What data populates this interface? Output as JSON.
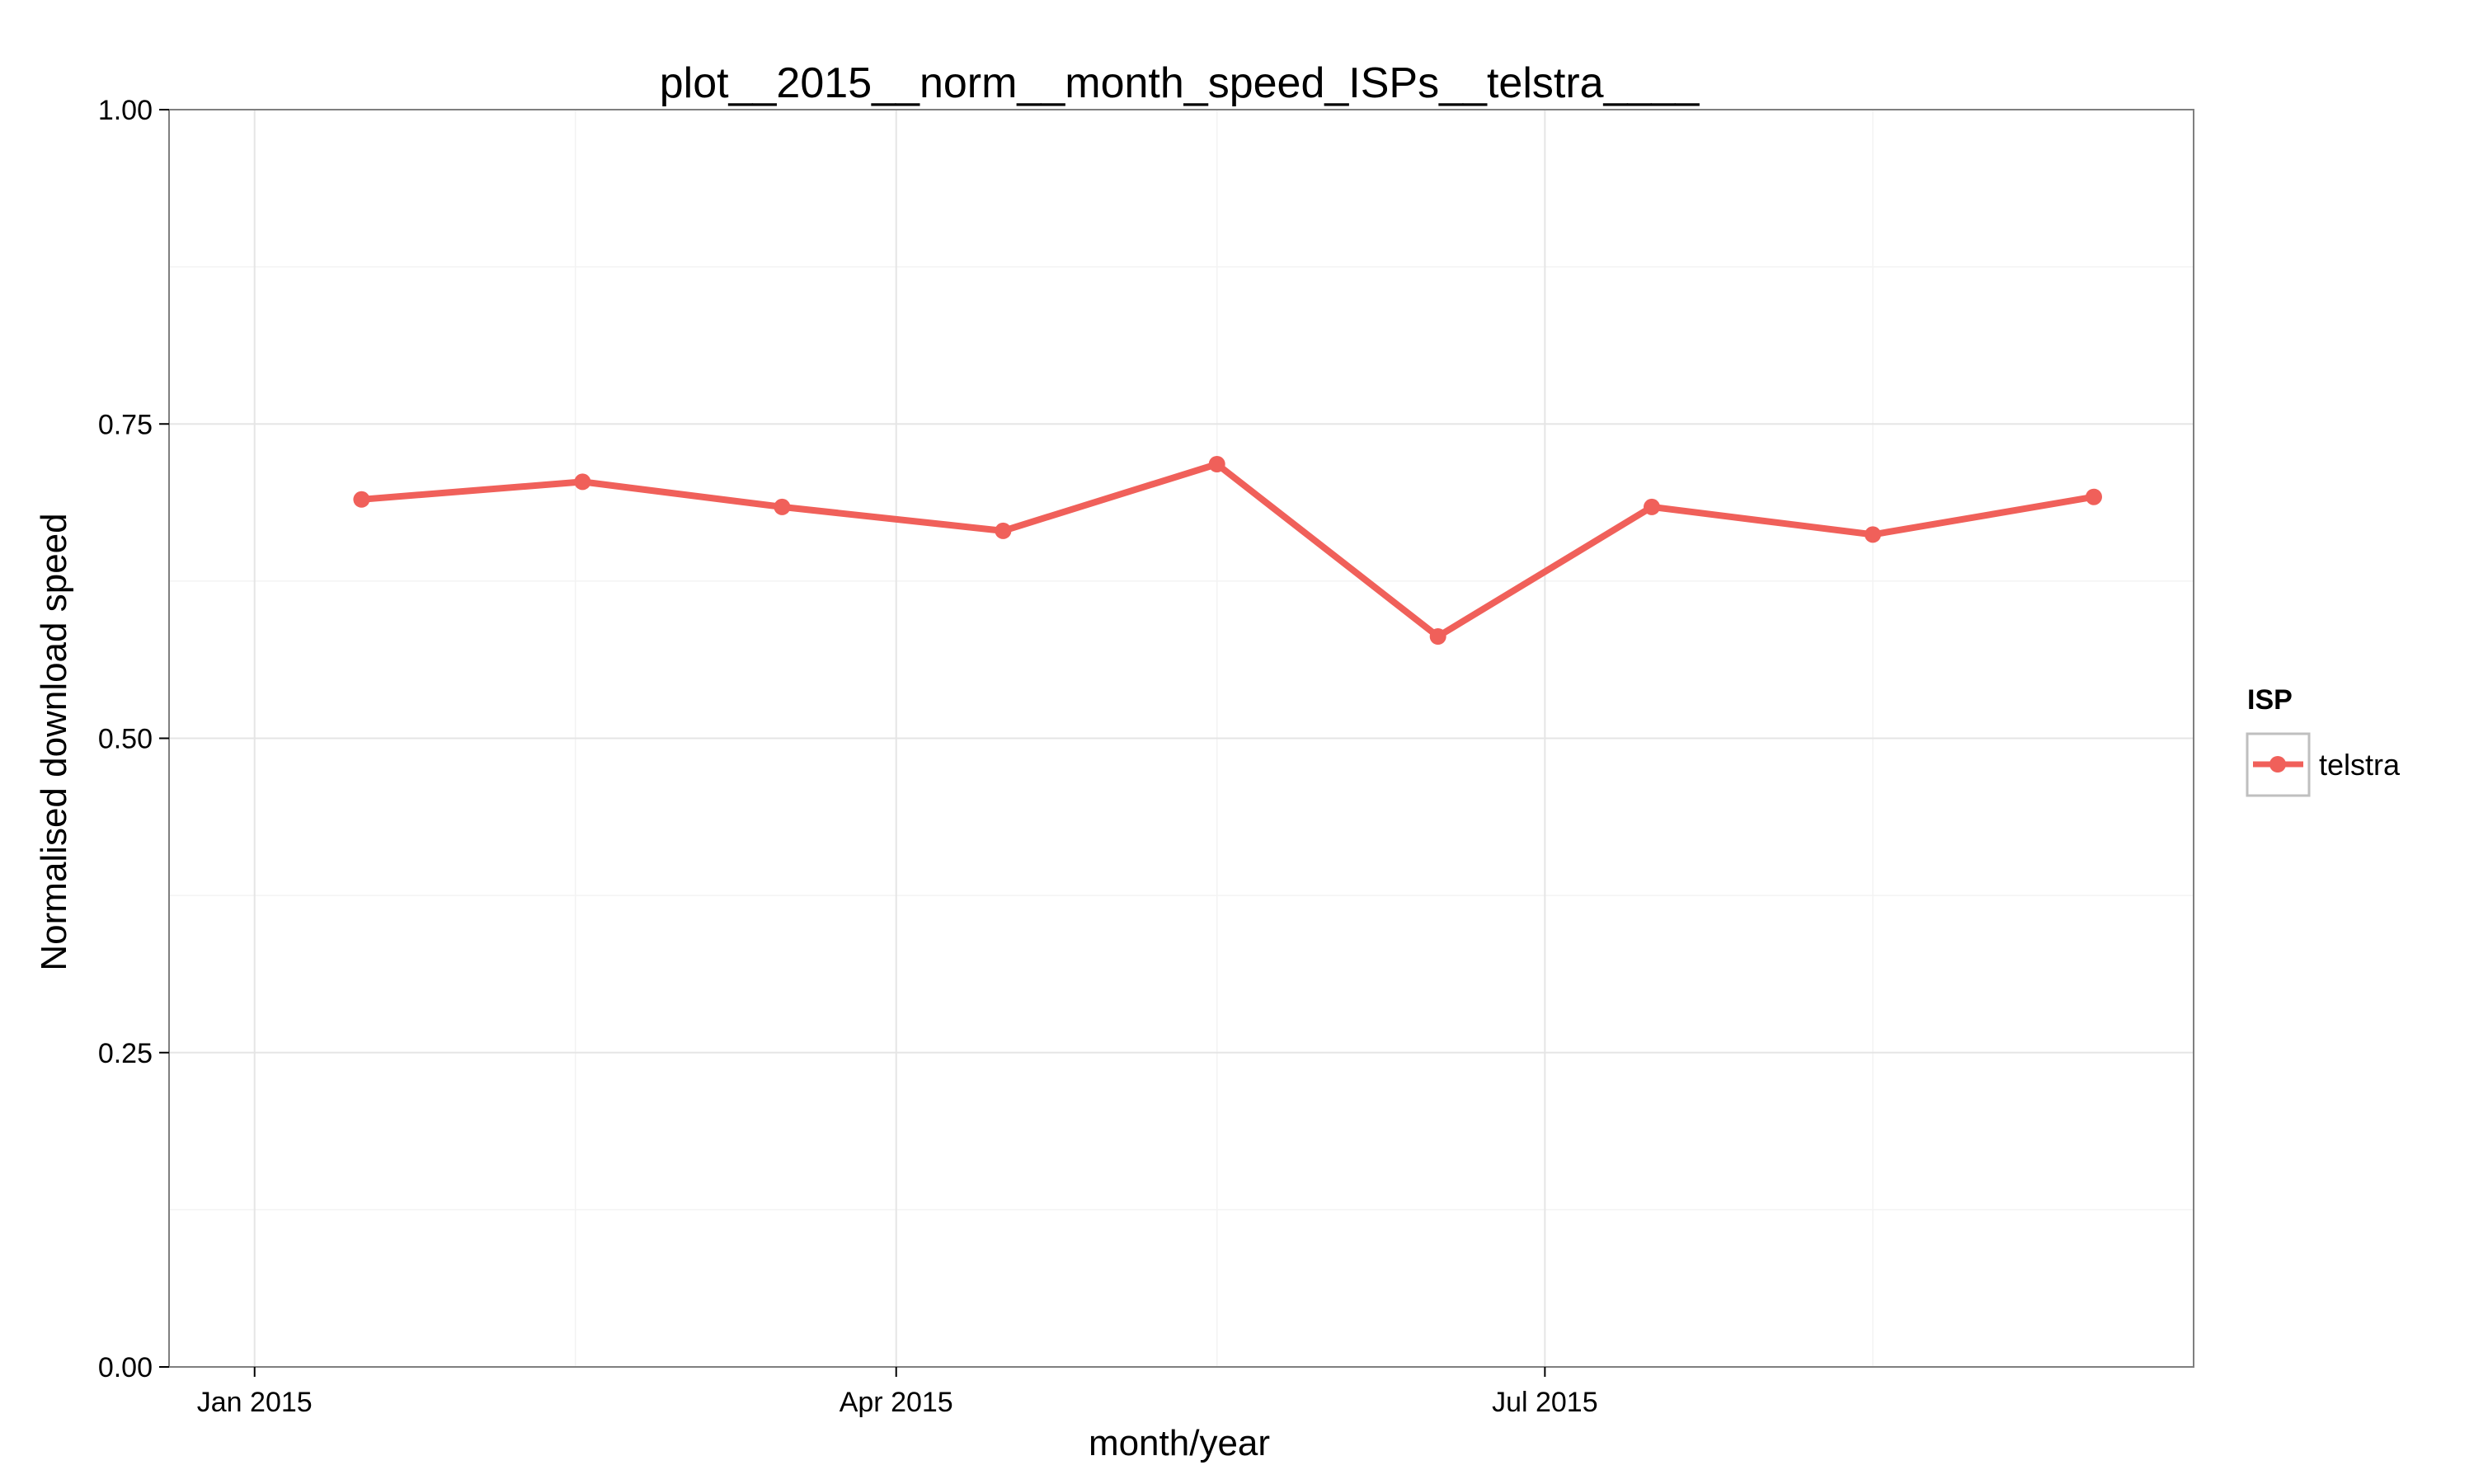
{
  "chart_data": {
    "type": "line",
    "title": "plot__2015__norm__month_speed_ISPs__telstra____",
    "xlabel": "month/year",
    "ylabel": "Normalised download speed",
    "x": [
      "2015-01",
      "2015-02",
      "2015-03",
      "2015-04",
      "2015-05",
      "2015-06",
      "2015-07",
      "2015-08",
      "2015-09"
    ],
    "xlim": [
      "2014-12-20",
      "2015-09-30"
    ],
    "x_ticks": [
      {
        "date": "2015-01-01",
        "label": "Jan 2015"
      },
      {
        "date": "2015-04-01",
        "label": "Apr 2015"
      },
      {
        "date": "2015-07-01",
        "label": "Jul 2015"
      }
    ],
    "x_minor_gridlines": [
      "2015-02-15",
      "2015-05-16",
      "2015-08-16"
    ],
    "ylim": [
      0,
      1
    ],
    "y_ticks": [
      {
        "value": 0.0,
        "label": "0.00"
      },
      {
        "value": 0.25,
        "label": "0.25"
      },
      {
        "value": 0.5,
        "label": "0.50"
      },
      {
        "value": 0.75,
        "label": "0.75"
      },
      {
        "value": 1.0,
        "label": "1.00"
      }
    ],
    "grid": true,
    "legend": {
      "title": "ISP",
      "position": "right"
    },
    "series": [
      {
        "name": "telstra",
        "color": "#f0605a",
        "values": [
          0.69,
          0.704,
          0.684,
          0.665,
          0.718,
          0.581,
          0.684,
          0.662,
          0.692
        ]
      }
    ]
  }
}
